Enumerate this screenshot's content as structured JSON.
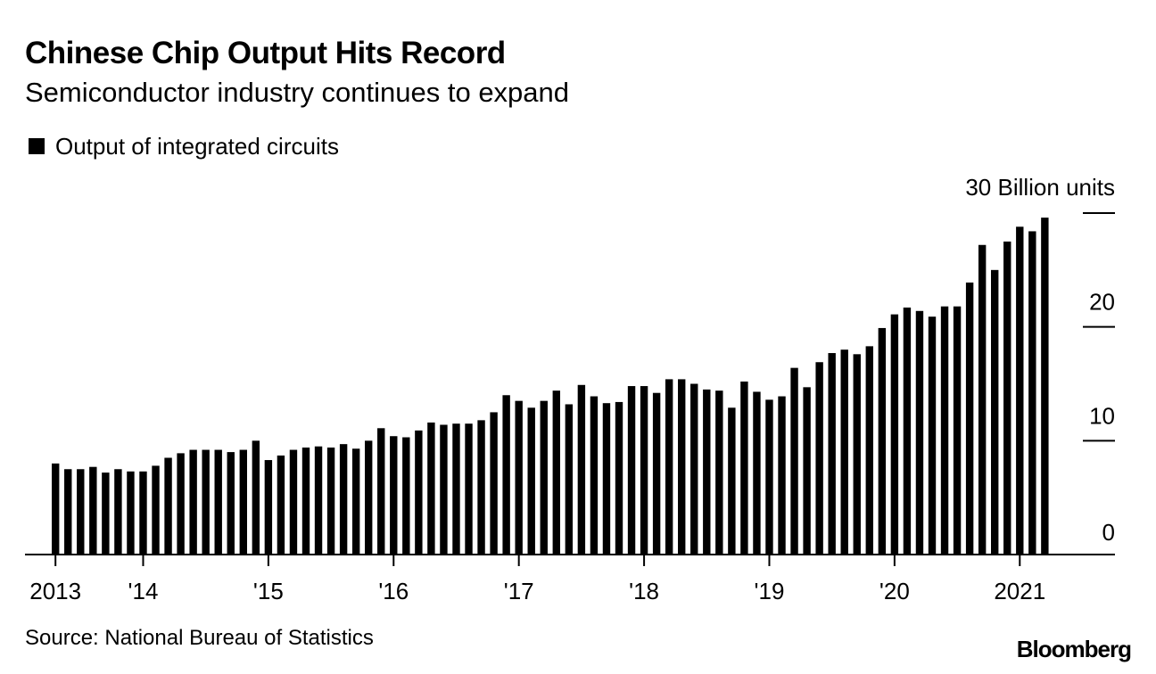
{
  "chart_data": {
    "type": "bar",
    "title": "Chinese Chip Output Hits Record",
    "subtitle": "Semiconductor industry continues to expand",
    "legend": [
      "Output of integrated circuits"
    ],
    "legend_position": "top-left",
    "unit_label": "30 Billion units",
    "xlabel": "",
    "ylabel": "",
    "ylim": [
      0,
      30
    ],
    "y_ticks": [
      {
        "value": 0,
        "label": "0"
      },
      {
        "value": 10,
        "label": "10"
      },
      {
        "value": 20,
        "label": "20"
      },
      {
        "value": 30,
        "label": ""
      }
    ],
    "x_ticks": [
      {
        "index": 0,
        "label": "2013"
      },
      {
        "index": 7,
        "label": "'14"
      },
      {
        "index": 17,
        "label": "'15"
      },
      {
        "index": 27,
        "label": "'16"
      },
      {
        "index": 37,
        "label": "'17"
      },
      {
        "index": 47,
        "label": "'18"
      },
      {
        "index": 57,
        "label": "'19"
      },
      {
        "index": 67,
        "label": "'20"
      },
      {
        "index": 77,
        "label": "2021"
      }
    ],
    "grid": false,
    "series": [
      {
        "name": "Output of integrated circuits",
        "color": "#000000",
        "values": [
          8.0,
          7.5,
          7.5,
          7.7,
          7.2,
          7.5,
          7.3,
          7.3,
          7.8,
          8.5,
          8.9,
          9.2,
          9.2,
          9.2,
          9.0,
          9.2,
          10.0,
          8.3,
          8.7,
          9.2,
          9.4,
          9.5,
          9.4,
          9.7,
          9.3,
          10.0,
          11.1,
          10.4,
          10.3,
          10.9,
          11.6,
          11.4,
          11.5,
          11.5,
          11.8,
          12.5,
          14.0,
          13.5,
          12.9,
          13.5,
          14.4,
          13.2,
          14.9,
          13.9,
          13.3,
          13.4,
          14.8,
          14.8,
          14.2,
          15.4,
          15.4,
          15.0,
          14.5,
          14.4,
          12.9,
          15.2,
          14.3,
          13.6,
          13.9,
          16.4,
          14.7,
          16.9,
          17.7,
          18.0,
          17.6,
          18.3,
          19.9,
          21.1,
          21.7,
          21.4,
          20.9,
          21.8,
          21.8,
          23.9,
          27.2,
          25.0,
          27.5,
          28.8,
          28.4,
          29.6
        ]
      }
    ]
  },
  "source": "Source: National Bureau of Statistics",
  "brand": "Bloomberg"
}
